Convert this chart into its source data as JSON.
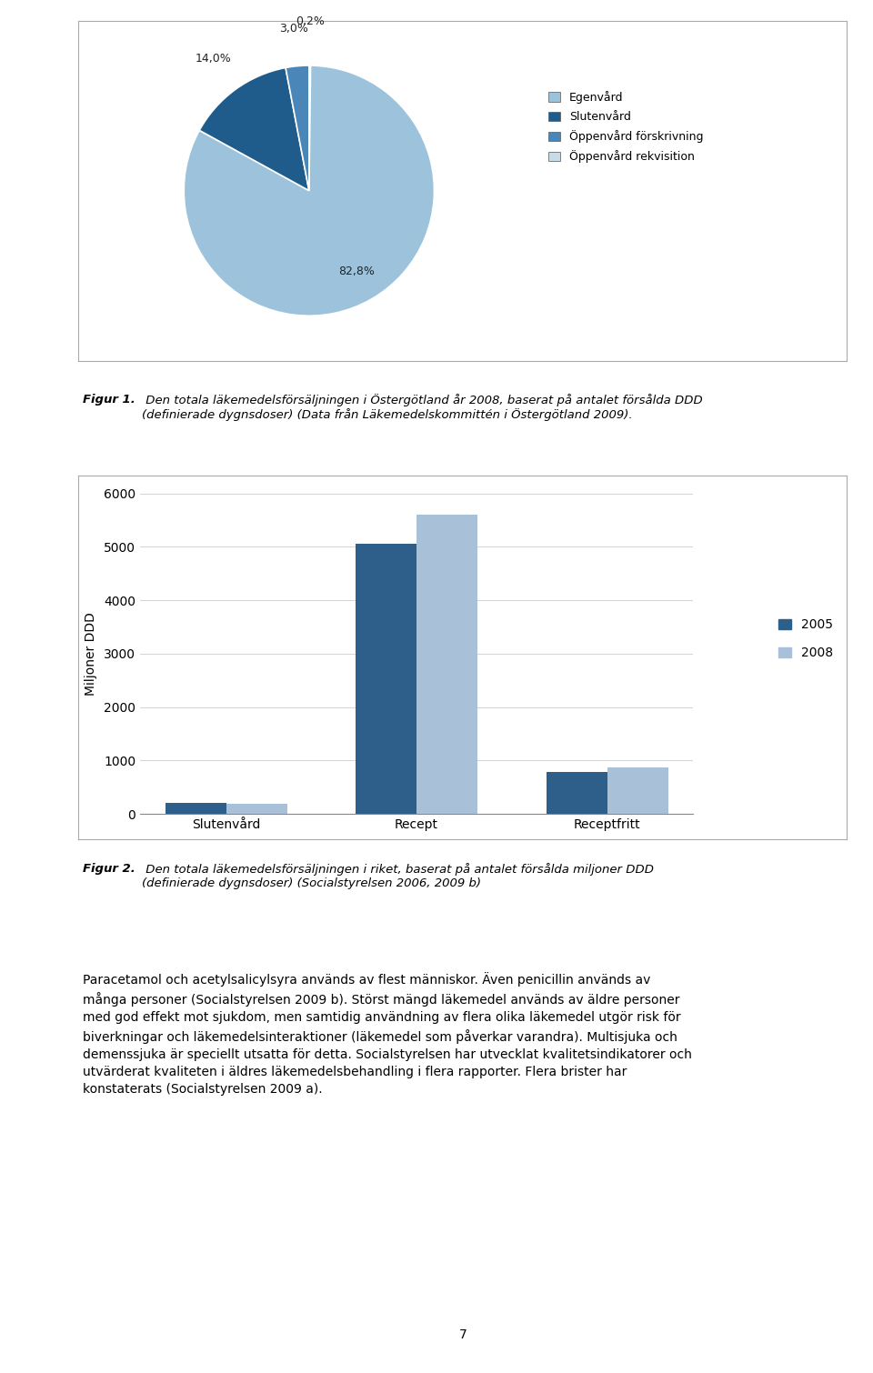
{
  "pie_values": [
    82.8,
    14.0,
    3.0,
    0.2
  ],
  "pie_labels": [
    "82,8%",
    "14,0%",
    "3,0%",
    "0,2%"
  ],
  "pie_colors": [
    "#9DC3DC",
    "#1F5C8B",
    "#4A86B8",
    "#C8DCE8"
  ],
  "pie_legend_labels": [
    "Egenvård",
    "Slutenvård",
    "Öppenvård förskrivning",
    "Öppenvård rekvisition"
  ],
  "pie_legend_colors": [
    "#9DC3DC",
    "#1F5C8B",
    "#4A86B8",
    "#C8DCE8"
  ],
  "bar_categories": [
    "Slutenvård",
    "Recept",
    "Receptfritt"
  ],
  "bar_2005": [
    205,
    5050,
    790
  ],
  "bar_2008": [
    190,
    5600,
    865
  ],
  "bar_color_2005": "#2E5F8A",
  "bar_color_2008": "#A8C0D8",
  "bar_ylabel": "Miljoner DDD",
  "bar_ylim": [
    0,
    6000
  ],
  "bar_yticks": [
    0,
    1000,
    2000,
    3000,
    4000,
    5000,
    6000
  ],
  "bar_legend_2005": "2005",
  "bar_legend_2008": "2008",
  "body_text_lines": [
    "Paracetamol och acetylsalicylsyra används av flest människor. Även penicillin används av",
    "många personer (Socialstyrelsen 2009 b). Störst mängd läkemedel används av äldre personer",
    "med god effekt mot sjukdom, men samtidig användning av flera olika läkemedel utgör risk för",
    "biverkningar och läkemedelsinteraktioner (läkemedel som påverkar varandra). Multisjuka och",
    "demenssjuka är speciellt utsatta för detta. Socialstyrelsen har utvecklat kvalitetsindikatorer och",
    "utvärderat kvaliteten i äldres läkemedelsbehandling i flera rapporter. Flera brister har",
    "konstaterats (Socialstyrelsen 2009 a)."
  ],
  "page_number": "7",
  "background_color": "#FFFFFF"
}
